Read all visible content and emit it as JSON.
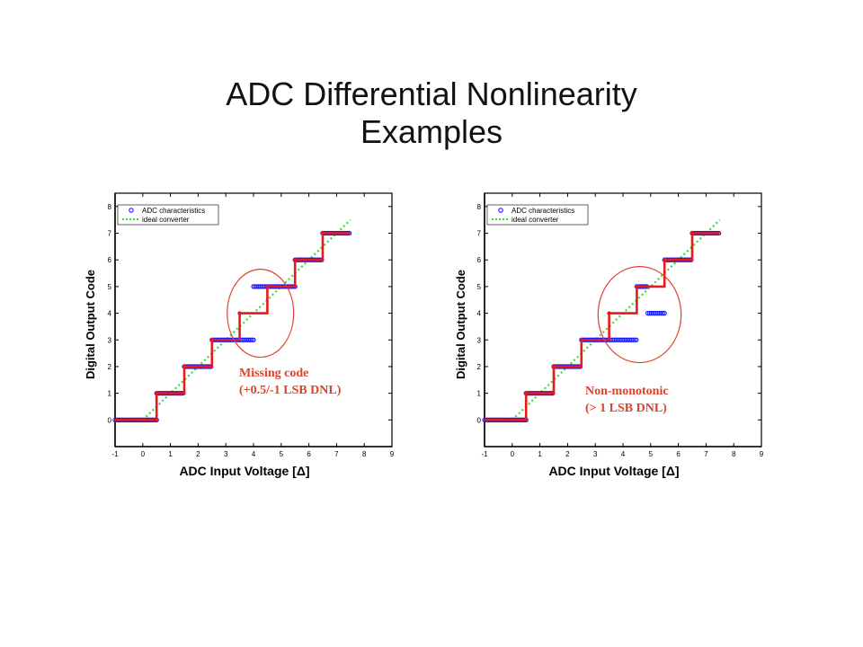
{
  "slide": {
    "title_line1": "ADC Differential Nonlinearity",
    "title_line2": "Examples"
  },
  "colors": {
    "adc_points": "#1a1aff",
    "staircase": "#e8191a",
    "ideal": "#33dd33",
    "annotation": "#e0402a"
  },
  "chart_data": [
    {
      "type": "line",
      "xlabel": "ADC Input Voltage  [Δ]",
      "ylabel": "Digital Output Code",
      "xlim": [
        -1,
        9
      ],
      "ylim": [
        -1,
        8.5
      ],
      "xticks": [
        "-1",
        "0",
        "1",
        "2",
        "3",
        "4",
        "5",
        "6",
        "7",
        "8",
        "9"
      ],
      "yticks": [
        "0",
        "1",
        "2",
        "3",
        "4",
        "5",
        "6",
        "7",
        "8"
      ],
      "legend": {
        "position": "top-left",
        "entries": [
          "ADC characteristics",
          "ideal converter"
        ]
      },
      "annotation": {
        "line1": "Missing code",
        "line2": "(+0.5/-1 LSB DNL)"
      },
      "series": [
        {
          "name": "ADC characteristics",
          "style": "circle-markers",
          "segments": [
            {
              "y": 0,
              "x": [
                -1,
                0.5
              ]
            },
            {
              "y": 1,
              "x": [
                0.5,
                1.5
              ]
            },
            {
              "y": 2,
              "x": [
                1.5,
                2.5
              ]
            },
            {
              "y": 3,
              "x": [
                2.5,
                4.0
              ]
            },
            {
              "y": 5,
              "x": [
                4.0,
                5.5
              ]
            },
            {
              "y": 6,
              "x": [
                5.5,
                6.5
              ]
            },
            {
              "y": 7,
              "x": [
                6.5,
                7.5
              ]
            }
          ]
        },
        {
          "name": "staircase",
          "style": "step-line",
          "points": [
            [
              -1,
              0
            ],
            [
              0.5,
              0
            ],
            [
              0.5,
              1
            ],
            [
              1.5,
              1
            ],
            [
              1.5,
              2
            ],
            [
              2.5,
              2
            ],
            [
              2.5,
              3
            ],
            [
              3.5,
              3
            ],
            [
              3.5,
              4
            ],
            [
              4.5,
              4
            ],
            [
              4.5,
              5
            ],
            [
              5.5,
              5
            ],
            [
              5.5,
              6
            ],
            [
              6.5,
              6
            ],
            [
              6.5,
              7
            ],
            [
              7.5,
              7
            ]
          ]
        },
        {
          "name": "ideal converter",
          "style": "dotted-line",
          "points": [
            [
              0,
              0
            ],
            [
              7.5,
              7.5
            ]
          ]
        }
      ],
      "ellipse": {
        "cx": 4.25,
        "cy": 4.0,
        "rx": 1.2,
        "ry": 1.65
      }
    },
    {
      "type": "line",
      "xlabel": "ADC Input Voltage  [Δ]",
      "ylabel": "Digital Output Code",
      "xlim": [
        -1,
        9
      ],
      "ylim": [
        -1,
        8.5
      ],
      "xticks": [
        "-1",
        "0",
        "1",
        "2",
        "3",
        "4",
        "5",
        "6",
        "7",
        "8",
        "9"
      ],
      "yticks": [
        "0",
        "1",
        "2",
        "3",
        "4",
        "5",
        "6",
        "7",
        "8"
      ],
      "legend": {
        "position": "top-left",
        "entries": [
          "ADC characteristics",
          "ideal converter"
        ]
      },
      "annotation": {
        "line1": "Non-monotonic",
        "line2": "(> 1 LSB DNL)"
      },
      "series": [
        {
          "name": "ADC characteristics",
          "style": "circle-markers",
          "segments": [
            {
              "y": 0,
              "x": [
                -1,
                0.5
              ]
            },
            {
              "y": 1,
              "x": [
                0.5,
                1.5
              ]
            },
            {
              "y": 2,
              "x": [
                1.5,
                2.5
              ]
            },
            {
              "y": 3,
              "x": [
                2.5,
                4.5
              ]
            },
            {
              "y": 5,
              "x": [
                4.5,
                4.9
              ]
            },
            {
              "y": 4,
              "x": [
                4.9,
                5.5
              ]
            },
            {
              "y": 6,
              "x": [
                5.5,
                6.5
              ]
            },
            {
              "y": 7,
              "x": [
                6.5,
                7.5
              ]
            }
          ]
        },
        {
          "name": "staircase",
          "style": "step-line",
          "points": [
            [
              -1,
              0
            ],
            [
              0.5,
              0
            ],
            [
              0.5,
              1
            ],
            [
              1.5,
              1
            ],
            [
              1.5,
              2
            ],
            [
              2.5,
              2
            ],
            [
              2.5,
              3
            ],
            [
              3.5,
              3
            ],
            [
              3.5,
              4
            ],
            [
              4.5,
              4
            ],
            [
              4.5,
              5
            ],
            [
              5.5,
              5
            ],
            [
              5.5,
              6
            ],
            [
              6.5,
              6
            ],
            [
              6.5,
              7
            ],
            [
              7.5,
              7
            ]
          ]
        },
        {
          "name": "ideal converter",
          "style": "dotted-line",
          "points": [
            [
              0,
              0
            ],
            [
              7.5,
              7.5
            ]
          ]
        }
      ],
      "ellipse": {
        "cx": 4.6,
        "cy": 3.95,
        "rx": 1.5,
        "ry": 1.8
      }
    }
  ]
}
